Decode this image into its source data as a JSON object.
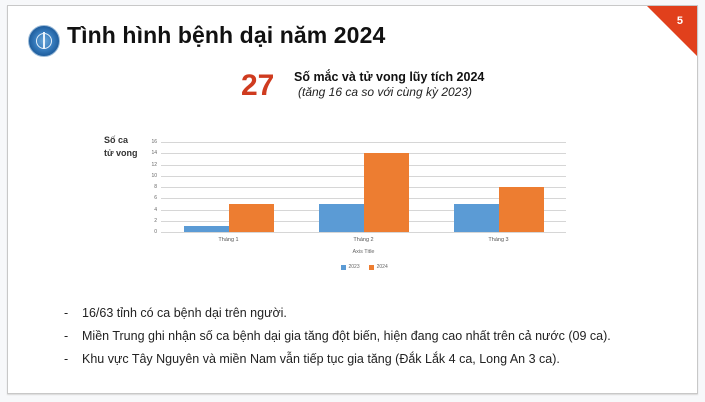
{
  "slide": {
    "page_number": "5",
    "title": "Tình hình bệnh dại năm 2024",
    "logo_icon": "ministry-of-health-emblem",
    "accent_color": "#e1401c"
  },
  "headline": {
    "number": "27",
    "label": "Số mắc và tử vong lũy tích 2024",
    "note": "(tăng 16 ca so với cùng kỳ 2023)"
  },
  "chart_data": {
    "type": "bar",
    "title": "",
    "categories": [
      "Tháng 1",
      "Tháng 2",
      "Tháng 3"
    ],
    "series": [
      {
        "name": "2023",
        "values": [
          1,
          5,
          5
        ],
        "color": "#5b9bd5"
      },
      {
        "name": "2024",
        "values": [
          5,
          14,
          8
        ],
        "color": "#ed7d31"
      }
    ],
    "xlabel": "Axis Title",
    "ylabel": "Số ca tử vong",
    "ylabel_lines": [
      "Số ca",
      "tử vong"
    ],
    "yticks": [
      0,
      2,
      4,
      6,
      8,
      10,
      12,
      14,
      16
    ],
    "ylim": [
      0,
      16
    ],
    "grid": true,
    "legend_position": "bottom"
  },
  "bullets": [
    {
      "marker": "-",
      "text": "16/63 tỉnh có ca bệnh dại trên người."
    },
    {
      "marker": "-",
      "text": "Miền Trung ghi nhận số ca bệnh dại gia tăng đột biến, hiện đang cao nhất trên cả nước (09 ca)."
    },
    {
      "marker": "-",
      "text": "Khu vực Tây Nguyên và miền Nam vẫn tiếp tục gia tăng (Đắk Lắk 4 ca, Long An 3 ca)."
    }
  ]
}
